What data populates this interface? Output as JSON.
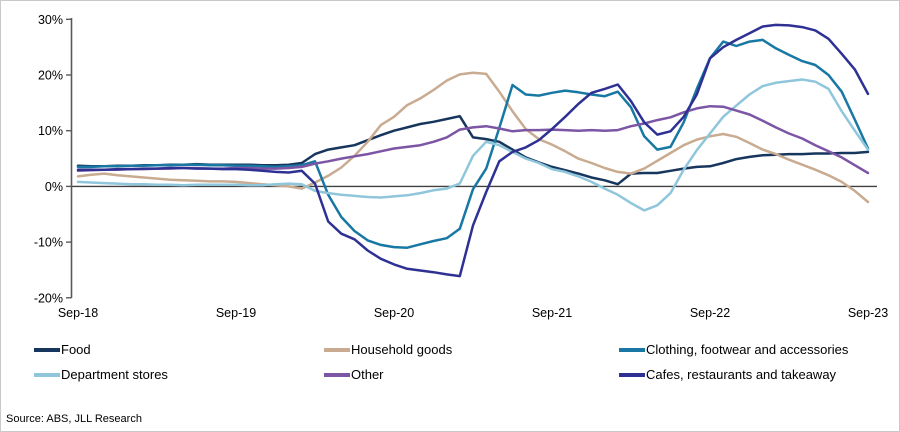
{
  "chart_data": {
    "type": "line",
    "title": "",
    "xlabel": "",
    "ylabel": "",
    "x_tick_labels": [
      "Sep-18",
      "Sep-19",
      "Sep-20",
      "Sep-21",
      "Sep-22",
      "Sep-23"
    ],
    "y_ticks": [
      30,
      20,
      10,
      0,
      -10,
      -20
    ],
    "y_tick_labels": [
      "30%",
      "20%",
      "10%",
      "0%",
      "-10%",
      "-20%"
    ],
    "ylim": [
      -20,
      30
    ],
    "grid": false,
    "legend_position": "bottom",
    "x_frequency": "monthly",
    "x_start": "Sep-18",
    "x_end": "Sep-23",
    "axis_color": "#595959",
    "zero_line_color": "#404040",
    "series": [
      {
        "name": "Food",
        "color": "#17365D",
        "values": [
          3.7,
          3.6,
          3.6,
          3.7,
          3.7,
          3.8,
          3.8,
          3.9,
          3.9,
          4.0,
          3.9,
          3.9,
          3.9,
          3.9,
          3.8,
          3.8,
          3.9,
          4.2,
          5.8,
          6.6,
          7.0,
          7.4,
          8.3,
          9.2,
          10.0,
          10.6,
          11.2,
          11.6,
          12.1,
          12.6,
          8.8,
          8.5,
          8.0,
          6.6,
          5.2,
          4.3,
          3.5,
          2.9,
          2.3,
          1.6,
          1.1,
          0.4,
          2.3,
          2.4,
          2.4,
          2.8,
          3.2,
          3.5,
          3.6,
          4.2,
          4.9,
          5.3,
          5.6,
          5.7,
          5.8,
          5.8,
          5.9,
          5.9,
          6.0,
          6.0,
          6.2
        ]
      },
      {
        "name": "Household goods",
        "color": "#C8AB90",
        "values": [
          1.8,
          2.1,
          2.3,
          2.0,
          1.8,
          1.6,
          1.4,
          1.2,
          1.1,
          1.0,
          0.9,
          0.9,
          0.8,
          0.6,
          0.4,
          0.2,
          0.0,
          -0.4,
          0.7,
          1.9,
          3.4,
          5.5,
          8.0,
          11.0,
          12.5,
          14.6,
          15.8,
          17.3,
          19.0,
          20.1,
          20.4,
          20.2,
          17.0,
          13.5,
          10.3,
          8.5,
          7.5,
          6.3,
          5.0,
          4.2,
          3.3,
          2.6,
          2.3,
          3.2,
          4.6,
          6.0,
          7.4,
          8.4,
          9.0,
          9.4,
          8.9,
          7.8,
          6.6,
          5.8,
          4.8,
          3.9,
          3.0,
          2.0,
          0.8,
          -0.8,
          -2.8
        ]
      },
      {
        "name": "Clothing, footwear and accessories",
        "color": "#1878A3",
        "values": [
          3.5,
          3.5,
          3.6,
          3.6,
          3.7,
          3.7,
          3.8,
          3.8,
          3.9,
          3.9,
          3.8,
          3.8,
          3.7,
          3.7,
          3.6,
          3.5,
          3.6,
          3.8,
          4.5,
          -1.5,
          -5.5,
          -8.0,
          -9.7,
          -10.5,
          -10.9,
          -11.0,
          -10.4,
          -9.8,
          -9.3,
          -7.6,
          -0.5,
          3.2,
          10.5,
          18.2,
          16.5,
          16.3,
          16.8,
          17.2,
          16.9,
          16.5,
          16.2,
          17.0,
          14.2,
          9.0,
          6.6,
          7.1,
          11.5,
          17.5,
          23.0,
          26.0,
          25.2,
          26.0,
          26.3,
          24.8,
          23.6,
          22.5,
          21.8,
          20.0,
          17.0,
          12.0,
          6.8
        ]
      },
      {
        "name": "Department stores",
        "color": "#8FC6DB",
        "values": [
          0.8,
          0.7,
          0.6,
          0.5,
          0.4,
          0.4,
          0.3,
          0.3,
          0.2,
          0.3,
          0.3,
          0.3,
          0.3,
          0.2,
          0.2,
          0.4,
          0.5,
          0.4,
          -0.8,
          -1.2,
          -1.5,
          -1.7,
          -1.9,
          -2.0,
          -1.8,
          -1.6,
          -1.2,
          -0.7,
          -0.4,
          0.5,
          5.5,
          8.0,
          7.4,
          6.2,
          5.0,
          4.2,
          3.1,
          2.6,
          1.8,
          0.8,
          -0.4,
          -1.5,
          -3.0,
          -4.3,
          -3.4,
          -1.2,
          3.0,
          6.5,
          9.5,
          12.5,
          14.5,
          16.5,
          18.0,
          18.6,
          18.9,
          19.2,
          18.8,
          17.5,
          13.5,
          10.0,
          6.6
        ]
      },
      {
        "name": "Other",
        "color": "#7C55A4",
        "values": [
          2.8,
          2.9,
          3.0,
          3.0,
          3.1,
          3.1,
          3.2,
          3.2,
          3.3,
          3.3,
          3.2,
          3.2,
          3.3,
          3.3,
          3.2,
          3.2,
          3.3,
          3.5,
          4.1,
          4.5,
          5.0,
          5.4,
          5.8,
          6.3,
          6.8,
          7.1,
          7.4,
          8.0,
          8.8,
          10.2,
          10.6,
          10.8,
          10.4,
          9.9,
          10.1,
          10.1,
          10.2,
          10.1,
          10.0,
          10.1,
          10.0,
          10.1,
          10.8,
          11.3,
          11.9,
          12.4,
          13.3,
          14.0,
          14.4,
          14.3,
          13.6,
          12.9,
          11.8,
          10.6,
          9.5,
          8.6,
          7.4,
          6.3,
          5.2,
          3.8,
          2.4
        ]
      },
      {
        "name": "Cafes, restaurants and takeaway",
        "color": "#2E3193",
        "values": [
          3.0,
          3.0,
          3.0,
          3.1,
          3.1,
          3.2,
          3.2,
          3.3,
          3.3,
          3.2,
          3.2,
          3.1,
          3.1,
          3.0,
          2.8,
          2.6,
          2.5,
          2.8,
          0.5,
          -6.3,
          -8.5,
          -9.5,
          -11.5,
          -13.0,
          -14.0,
          -14.8,
          -15.1,
          -15.4,
          -15.8,
          -16.1,
          -7.0,
          -1.0,
          4.5,
          6.2,
          7.0,
          8.3,
          10.3,
          12.5,
          14.8,
          16.8,
          17.5,
          18.3,
          15.3,
          11.5,
          9.3,
          9.9,
          12.5,
          16.5,
          23.0,
          25.0,
          26.3,
          27.5,
          28.7,
          29.0,
          28.9,
          28.6,
          28.0,
          26.5,
          23.8,
          21.0,
          16.6
        ]
      }
    ],
    "source": "Source: ABS, JLL Research"
  }
}
